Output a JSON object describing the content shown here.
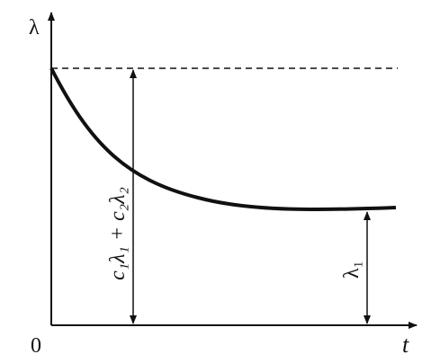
{
  "axes": {
    "y_label": "λ",
    "x_label": "t",
    "origin": "0"
  },
  "annotations": {
    "initial": "c₁λ₁ + c₂λ₂",
    "final": "λ₁"
  }
}
